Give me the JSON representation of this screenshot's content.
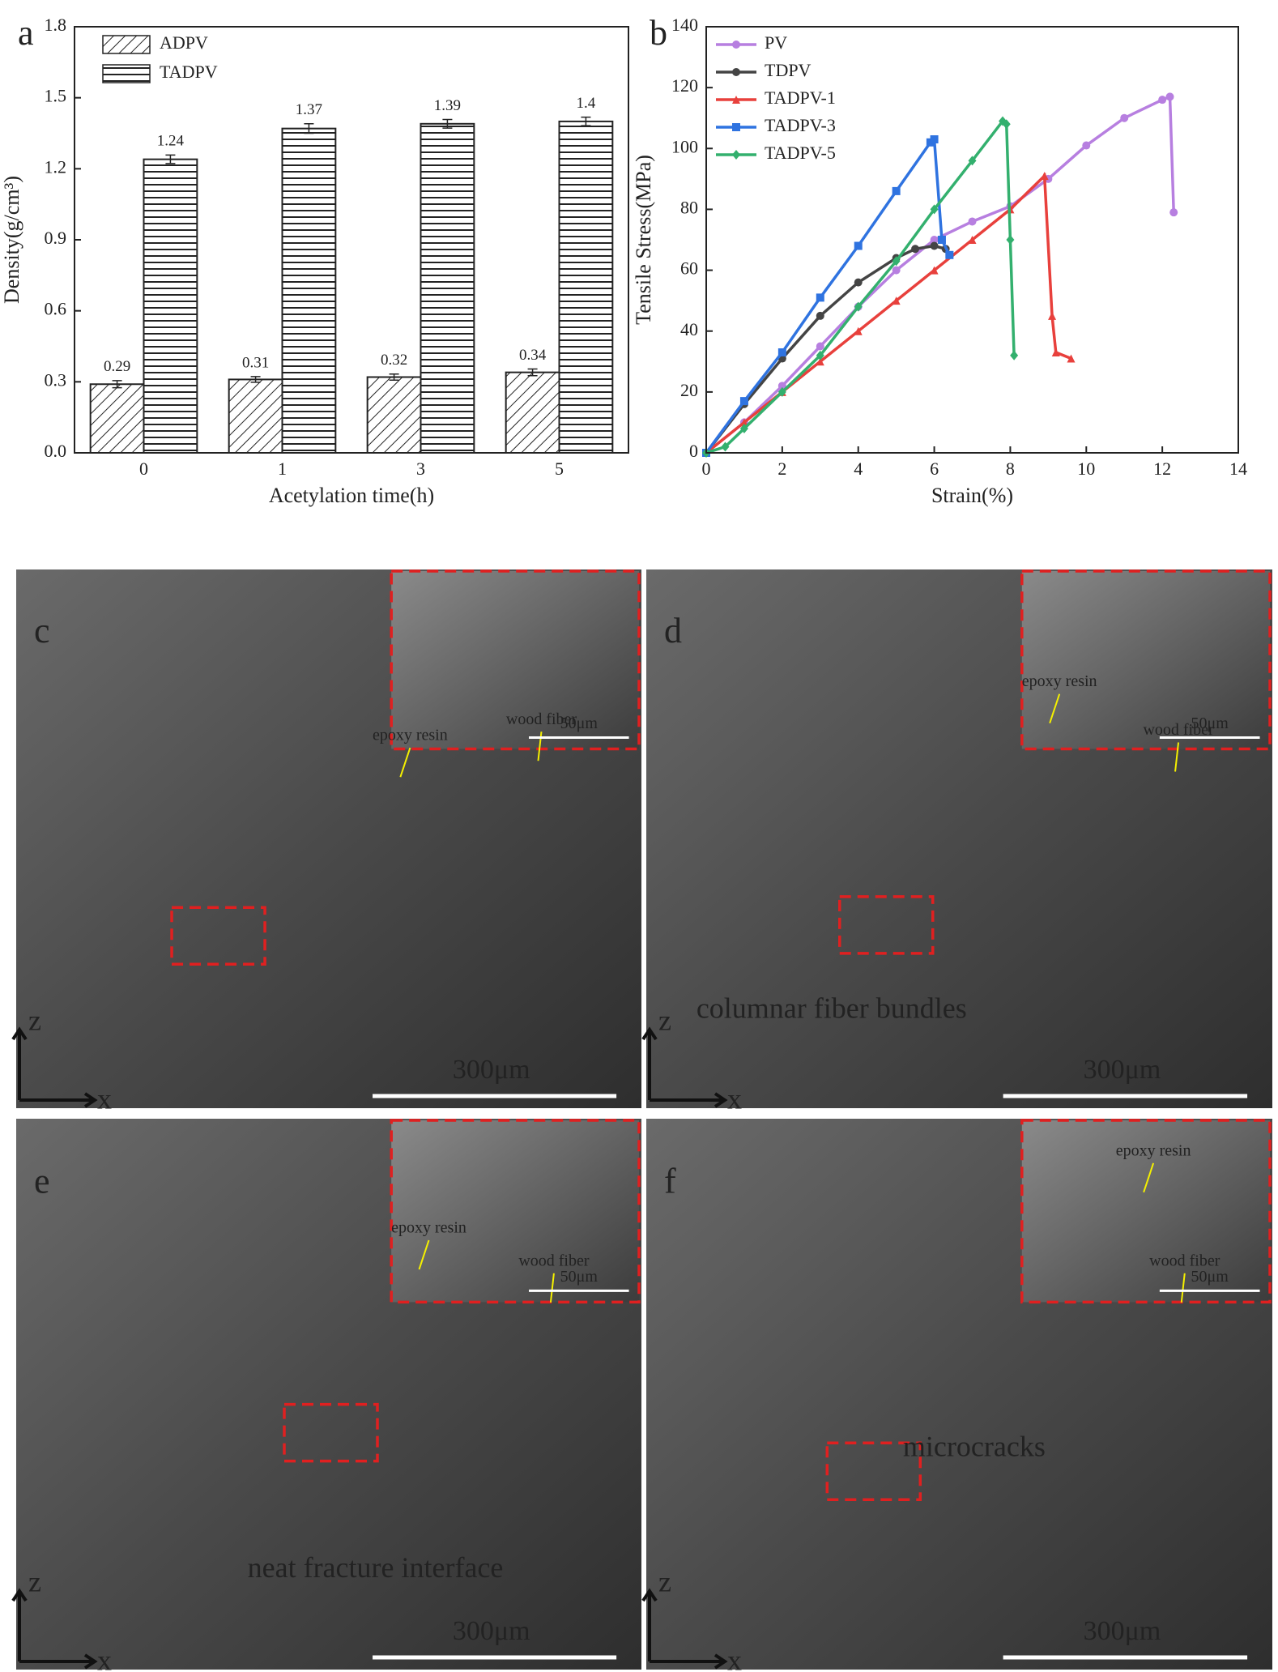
{
  "chart_data": [
    {
      "type": "bar",
      "panel": "a",
      "xlabel": "Acetylation time(h)",
      "ylabel": "Density(g/cm³)",
      "categories": [
        "0",
        "1",
        "3",
        "5"
      ],
      "series": [
        {
          "name": "ADPV",
          "color": "#222222",
          "hatch": "diagonal",
          "values": [
            0.29,
            0.31,
            0.32,
            0.34
          ],
          "errors": [
            0.015,
            0.012,
            0.013,
            0.014
          ]
        },
        {
          "name": "TADPV",
          "color": "#222222",
          "hatch": "horizontal",
          "values": [
            1.24,
            1.37,
            1.39,
            1.4
          ],
          "errors": [
            0.018,
            0.02,
            0.018,
            0.018
          ]
        }
      ],
      "ylim": [
        0,
        1.8
      ],
      "yticks": [
        {
          "value": 0,
          "label": "0.0"
        },
        0.3,
        0.6,
        0.9,
        1.2,
        1.5,
        1.8
      ],
      "legend": "upper-left"
    },
    {
      "type": "line",
      "panel": "b",
      "xlabel": "Strain(%)",
      "ylabel": "Tensile Stress(MPa)",
      "xlim": [
        0,
        14
      ],
      "xticks": [
        0,
        2,
        4,
        6,
        8,
        10,
        12,
        14
      ],
      "ylim": [
        0,
        140
      ],
      "yticks": [
        0,
        20,
        40,
        60,
        80,
        100,
        120,
        140
      ],
      "legend": "upper-left",
      "series": [
        {
          "name": "PV",
          "color": "#b77fe0",
          "marker": "circle",
          "x": [
            0,
            1,
            2,
            3,
            4,
            5,
            6,
            7,
            8,
            9,
            10,
            11,
            12,
            12.2,
            12.3
          ],
          "values": [
            0,
            10,
            22,
            35,
            48,
            60,
            70,
            76,
            81,
            90,
            101,
            110,
            116,
            117,
            79
          ]
        },
        {
          "name": "TDPV",
          "color": "#444444",
          "marker": "circle",
          "x": [
            0,
            1,
            2,
            3,
            4,
            5,
            5.5,
            6,
            6.3
          ],
          "values": [
            0,
            16,
            31,
            45,
            56,
            64,
            67,
            68,
            67
          ]
        },
        {
          "name": "TADPV-1",
          "color": "#e8403c",
          "marker": "triangle",
          "x": [
            0,
            1,
            2,
            3,
            4,
            5,
            6,
            7,
            8,
            8.9,
            9.1,
            9.2,
            9.6
          ],
          "values": [
            0,
            10,
            20,
            30,
            40,
            50,
            60,
            70,
            80,
            91,
            45,
            33,
            31
          ]
        },
        {
          "name": "TADPV-3",
          "color": "#2f73e0",
          "marker": "square",
          "x": [
            0,
            1,
            2,
            3,
            4,
            5,
            5.9,
            6,
            6.2,
            6.4
          ],
          "values": [
            0,
            17,
            33,
            51,
            68,
            86,
            102,
            103,
            70,
            65
          ]
        },
        {
          "name": "TADPV-5",
          "color": "#33b06e",
          "marker": "diamond",
          "x": [
            0,
            0.5,
            1,
            2,
            3,
            4,
            5,
            6,
            7,
            7.8,
            7.9,
            8.0,
            8.1
          ],
          "values": [
            0,
            2,
            8,
            20,
            32,
            48,
            63,
            80,
            96,
            109,
            108,
            70,
            32
          ]
        }
      ]
    }
  ],
  "sem_panels": [
    {
      "label": "c",
      "inset_labels": [
        "epoxy resin",
        "wood fiber"
      ],
      "inset_scale": "50μm",
      "scale": "300μm",
      "axes": [
        "z",
        "x"
      ]
    },
    {
      "label": "d",
      "inset_labels": [
        "epoxy resin",
        "wood fiber"
      ],
      "inset_scale": "50μm",
      "scale": "300μm",
      "axes": [
        "z",
        "x"
      ],
      "caption": "columnar fiber bundles"
    },
    {
      "label": "e",
      "inset_labels": [
        "epoxy resin",
        "wood fiber"
      ],
      "inset_scale": "50μm",
      "scale": "300μm",
      "axes": [
        "z",
        "x"
      ],
      "caption": "neat fracture interface"
    },
    {
      "label": "f",
      "inset_labels": [
        "epoxy resin",
        "wood fiber"
      ],
      "inset_scale": "50μm",
      "scale": "300μm",
      "axes": [
        "z",
        "x"
      ],
      "caption": "microcracks"
    }
  ]
}
